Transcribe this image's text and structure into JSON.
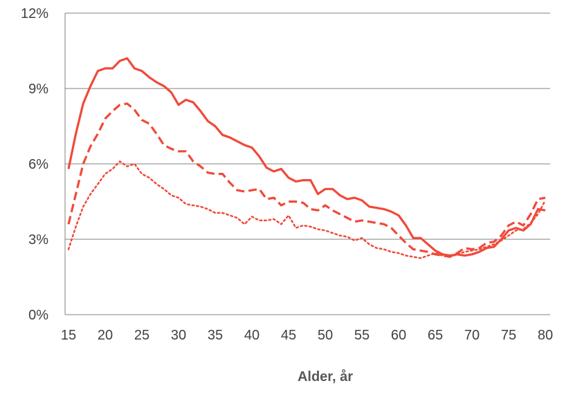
{
  "chart_data": {
    "type": "line",
    "title": "",
    "xlabel": "Alder, år",
    "ylabel": "",
    "xlim": [
      15,
      80
    ],
    "ylim": [
      0,
      12
    ],
    "x_ticks": [
      15,
      20,
      25,
      30,
      35,
      40,
      45,
      50,
      55,
      60,
      65,
      70,
      75,
      80
    ],
    "y_ticks": [
      {
        "value": 0,
        "label": "0%"
      },
      {
        "value": 3,
        "label": "3%"
      },
      {
        "value": 6,
        "label": "6%"
      },
      {
        "value": 9,
        "label": "9%"
      },
      {
        "value": 12,
        "label": "12%"
      }
    ],
    "grid": "horizontal",
    "legend": "none",
    "colors": {
      "series": "#F0493A",
      "grid": "#808080",
      "axis": "#808080",
      "text": "#404040",
      "xlabel": "#595959"
    },
    "x": [
      15,
      16,
      17,
      18,
      19,
      20,
      21,
      22,
      23,
      24,
      25,
      26,
      27,
      28,
      29,
      30,
      31,
      32,
      33,
      34,
      35,
      36,
      37,
      38,
      39,
      40,
      41,
      42,
      43,
      44,
      45,
      46,
      47,
      48,
      49,
      50,
      51,
      52,
      53,
      54,
      55,
      56,
      57,
      58,
      59,
      60,
      61,
      62,
      63,
      64,
      65,
      66,
      67,
      68,
      69,
      70,
      71,
      72,
      73,
      74,
      75,
      76,
      77,
      78,
      79,
      80
    ],
    "series": [
      {
        "style": "solid",
        "values": [
          5.8,
          7.2,
          8.4,
          9.1,
          9.7,
          9.8,
          9.8,
          10.1,
          10.2,
          9.8,
          9.7,
          9.45,
          9.25,
          9.1,
          8.85,
          8.35,
          8.55,
          8.45,
          8.1,
          7.7,
          7.5,
          7.15,
          7.05,
          6.9,
          6.75,
          6.65,
          6.3,
          5.85,
          5.7,
          5.8,
          5.45,
          5.3,
          5.35,
          5.35,
          4.8,
          5.0,
          5.0,
          4.75,
          4.6,
          4.65,
          4.55,
          4.3,
          4.25,
          4.2,
          4.1,
          3.95,
          3.55,
          3.05,
          3.05,
          2.8,
          2.55,
          2.4,
          2.35,
          2.4,
          2.35,
          2.4,
          2.5,
          2.65,
          2.7,
          3.0,
          3.35,
          3.45,
          3.35,
          3.6,
          4.2,
          4.15
        ]
      },
      {
        "style": "dashed",
        "values": [
          3.6,
          4.8,
          6.0,
          6.7,
          7.2,
          7.8,
          8.1,
          8.35,
          8.4,
          8.15,
          7.75,
          7.6,
          7.2,
          6.75,
          6.6,
          6.5,
          6.5,
          6.1,
          5.9,
          5.65,
          5.6,
          5.6,
          5.25,
          4.95,
          4.9,
          4.95,
          5.0,
          4.6,
          4.65,
          4.35,
          4.5,
          4.5,
          4.45,
          4.2,
          4.15,
          4.35,
          4.15,
          4.0,
          3.85,
          3.7,
          3.75,
          3.7,
          3.65,
          3.6,
          3.45,
          3.15,
          2.85,
          2.6,
          2.55,
          2.5,
          2.4,
          2.35,
          2.3,
          2.45,
          2.65,
          2.6,
          2.65,
          2.85,
          2.9,
          3.15,
          3.55,
          3.7,
          3.55,
          4.0,
          4.6,
          4.65
        ]
      },
      {
        "style": "dotted",
        "values": [
          2.6,
          3.5,
          4.3,
          4.8,
          5.2,
          5.6,
          5.8,
          6.1,
          5.9,
          6.0,
          5.6,
          5.45,
          5.2,
          5.0,
          4.75,
          4.65,
          4.4,
          4.35,
          4.3,
          4.2,
          4.05,
          4.05,
          3.95,
          3.85,
          3.6,
          3.9,
          3.75,
          3.75,
          3.8,
          3.6,
          3.95,
          3.45,
          3.55,
          3.5,
          3.4,
          3.35,
          3.25,
          3.15,
          3.1,
          2.95,
          3.05,
          2.8,
          2.65,
          2.6,
          2.5,
          2.45,
          2.35,
          2.3,
          2.25,
          2.35,
          2.45,
          2.35,
          2.3,
          2.4,
          2.5,
          2.55,
          2.6,
          2.7,
          2.8,
          2.95,
          3.15,
          3.35,
          3.4,
          3.65,
          4.0,
          4.55
        ]
      }
    ]
  }
}
